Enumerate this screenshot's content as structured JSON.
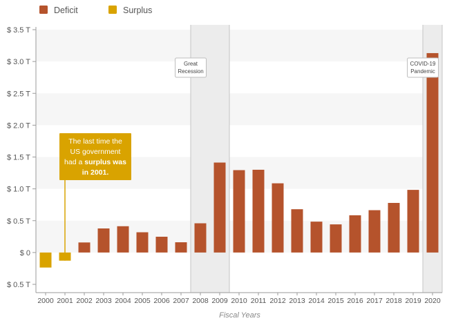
{
  "chart_data": {
    "type": "bar",
    "title": "",
    "xlabel": "Fiscal Years",
    "ylabel": "",
    "legend": {
      "position": "top-left",
      "items": [
        {
          "label": "Deficit",
          "color": "#b5532c"
        },
        {
          "label": "Surplus",
          "color": "#d9a300"
        }
      ]
    },
    "categories": [
      "2000",
      "2001",
      "2002",
      "2003",
      "2004",
      "2005",
      "2006",
      "2007",
      "2008",
      "2009",
      "2010",
      "2011",
      "2012",
      "2013",
      "2014",
      "2015",
      "2016",
      "2017",
      "2018",
      "2019",
      "2020"
    ],
    "values": [
      -0.236,
      -0.128,
      0.158,
      0.378,
      0.413,
      0.318,
      0.248,
      0.161,
      0.459,
      1.413,
      1.294,
      1.3,
      1.087,
      0.68,
      0.485,
      0.442,
      0.585,
      0.665,
      0.779,
      0.984,
      3.132
    ],
    "ylim": [
      -0.5,
      3.5
    ],
    "yticks": [
      -0.5,
      0,
      0.5,
      1.0,
      1.5,
      2.0,
      2.5,
      3.0,
      3.5
    ],
    "ytick_labels": [
      "$ 0.5 T",
      "$ 0",
      "$ 0.5 T",
      "$ 1.0 T",
      "$ 1.5 T",
      "$ 2.0 T",
      "$ 2.5 T",
      "$ 3.0 T",
      "$ 3.5 T"
    ],
    "grid": "horizontal alternating bands",
    "colors": {
      "deficit": "#b5532c",
      "surplus": "#d9a300",
      "shade": "#ececec"
    },
    "shaded_periods": [
      {
        "label": "Great Recession",
        "lines": [
          "Great",
          "Recession"
        ],
        "from": "2008",
        "to": "2009"
      },
      {
        "label": "COVID-19 Pandemic",
        "lines": [
          "COVID-19",
          "Pandemic"
        ],
        "from": "2020",
        "to": "2020"
      }
    ],
    "callout": {
      "target": "2001",
      "lines": [
        [
          {
            "text": "The last time the",
            "bold": false
          }
        ],
        [
          {
            "text": "US government",
            "bold": false
          }
        ],
        [
          {
            "text": "had a ",
            "bold": false
          },
          {
            "text": "surplus was",
            "bold": true
          }
        ],
        [
          {
            "text": "in 2001.",
            "bold": true
          }
        ]
      ]
    }
  }
}
